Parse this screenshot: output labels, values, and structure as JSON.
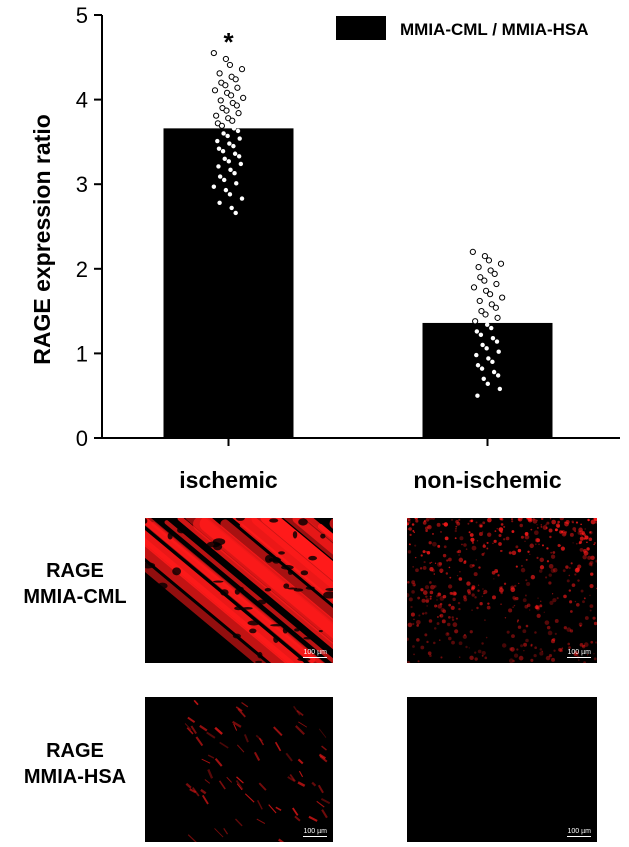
{
  "chart_data": {
    "type": "bar",
    "categories": [
      "ischemic",
      "non-ischemic"
    ],
    "series": [
      {
        "name": "MMIA-CML / MMIA-HSA",
        "values": [
          3.66,
          1.36
        ],
        "color": "#000000"
      }
    ],
    "points": [
      [
        4.55,
        4.48,
        4.41,
        4.36,
        4.31,
        4.27,
        4.24,
        4.2,
        4.17,
        4.14,
        4.11,
        4.08,
        4.05,
        4.02,
        3.99,
        3.96,
        3.93,
        3.9,
        3.87,
        3.84,
        3.81,
        3.78,
        3.75,
        3.72,
        3.69,
        3.66,
        3.63,
        3.6,
        3.57,
        3.54,
        3.51,
        3.48,
        3.45,
        3.42,
        3.39,
        3.36,
        3.33,
        3.3,
        3.27,
        3.24,
        3.21,
        3.17,
        3.13,
        3.09,
        3.05,
        3.01,
        2.97,
        2.93,
        2.88,
        2.83,
        2.78,
        2.72,
        2.66
      ],
      [
        2.2,
        2.15,
        2.1,
        2.06,
        2.02,
        1.98,
        1.94,
        1.9,
        1.86,
        1.82,
        1.78,
        1.74,
        1.7,
        1.66,
        1.62,
        1.58,
        1.54,
        1.5,
        1.46,
        1.42,
        1.38,
        1.34,
        1.3,
        1.26,
        1.22,
        1.18,
        1.14,
        1.1,
        1.06,
        1.02,
        0.98,
        0.94,
        0.9,
        0.86,
        0.82,
        0.78,
        0.74,
        0.7,
        0.64,
        0.58,
        0.5
      ]
    ],
    "significance": [
      "*",
      ""
    ],
    "ylabel": "RAGE expression ratio",
    "xlabel": "",
    "ylim": [
      0,
      5
    ],
    "yticks": [
      0,
      1,
      2,
      3,
      4,
      5
    ],
    "legend": {
      "label": "MMIA-CML / MMIA-HSA",
      "position": "top-right"
    },
    "grid": false
  },
  "micrographs": {
    "rows": [
      {
        "label_line1": "RAGE",
        "label_line2": "MMIA-CML"
      },
      {
        "label_line1": "RAGE",
        "label_line2": "MMIA-HSA"
      }
    ],
    "scale_label": "100 µm",
    "stain_color": "#ff1a1a"
  }
}
